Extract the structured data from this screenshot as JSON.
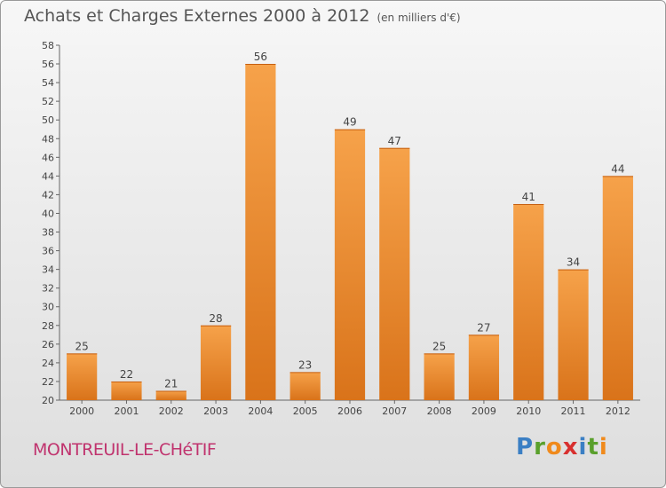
{
  "header": {
    "title": "Achats et Charges Externes 2000 à 2012",
    "unit": "(en milliers d'€)"
  },
  "footer": {
    "location": "MONTREUIL-LE-CHéTIF",
    "brand": "Proxiti",
    "brand_letters": [
      "P",
      "r",
      "o",
      "x",
      "i",
      "t",
      "i"
    ],
    "brand_colors": [
      "#3b7fc4",
      "#5aa02c",
      "#f08a1c",
      "#d8302f",
      "#3b7fc4",
      "#5aa02c",
      "#f08a1c"
    ]
  },
  "chart_data": {
    "type": "bar",
    "title": "Achats et Charges Externes 2000 à 2012",
    "subtitle": "(en milliers d'€)",
    "xlabel": "",
    "ylabel": "",
    "categories": [
      "2000",
      "2001",
      "2002",
      "2003",
      "2004",
      "2005",
      "2006",
      "2007",
      "2008",
      "2009",
      "2010",
      "2011",
      "2012"
    ],
    "values": [
      25,
      22,
      21,
      28,
      56,
      23,
      49,
      47,
      25,
      27,
      41,
      34,
      44
    ],
    "ylim": [
      20,
      58
    ],
    "ytick_step": 2,
    "grid": false,
    "bar_color": "#f0902c"
  }
}
